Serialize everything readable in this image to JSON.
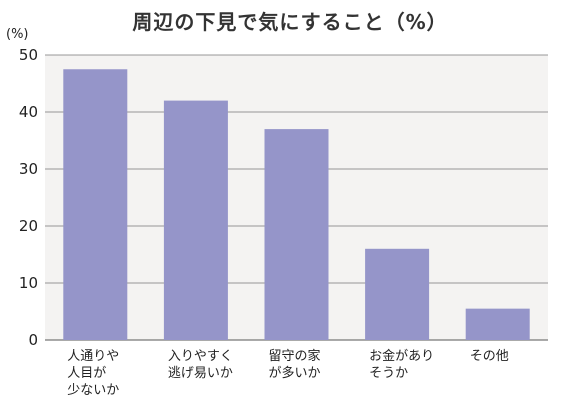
{
  "chart_data": {
    "type": "bar",
    "title": "周辺の下見で気にすること（%）",
    "ylabel": "(%)",
    "xlabel": "",
    "ylim": [
      0,
      50
    ],
    "yticks": [
      "0",
      "10",
      "20",
      "30",
      "40",
      "50"
    ],
    "categories": [
      [
        "人通りや",
        "人目が",
        "少ないか"
      ],
      [
        "入りやすく",
        "逃げ易いか"
      ],
      [
        "留守の家",
        "が多いか"
      ],
      [
        "お金があり",
        "そうか"
      ],
      [
        "その他"
      ]
    ],
    "values": [
      47.5,
      42,
      37,
      16,
      5.5
    ],
    "grid": true,
    "colors": {
      "bar": "#9595c9",
      "plot_background": "#f4f3f2",
      "grid": "#777777"
    }
  }
}
